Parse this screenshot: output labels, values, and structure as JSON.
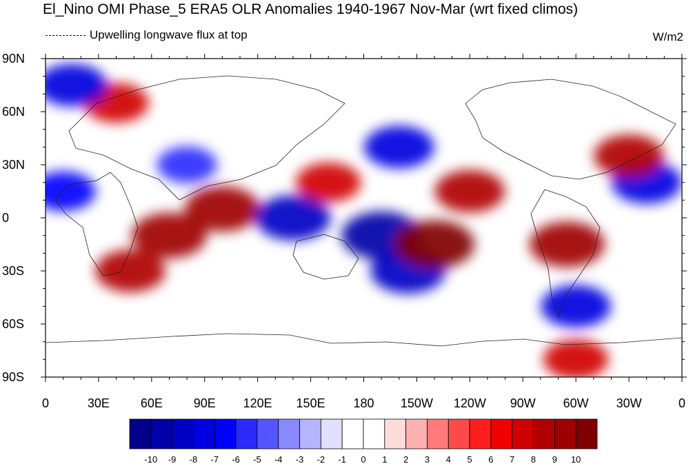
{
  "title": "El_Nino OMI Phase_5 ERA5 OLR Anomalies 1940-1967 Nov-Mar (wrt fixed climos)",
  "subtitle": "Upwelling longwave flux at top",
  "units": "W/m2",
  "map": {
    "lat_labels": [
      "90N",
      "60N",
      "30N",
      "0",
      "30S",
      "60S",
      "90S"
    ],
    "lon_labels": [
      "0",
      "30E",
      "60E",
      "90E",
      "120E",
      "150E",
      "180",
      "150W",
      "120W",
      "90W",
      "60W",
      "30W",
      "0"
    ]
  },
  "colorbar": {
    "labels": [
      "-10",
      "-9",
      "-8",
      "-7",
      "-6",
      "-5",
      "-4",
      "-3",
      "-2",
      "-1",
      "0",
      "1",
      "2",
      "3",
      "4",
      "5",
      "6",
      "7",
      "8",
      "9",
      "10"
    ],
    "colors": [
      "#00008c",
      "#0000a8",
      "#0000c4",
      "#0000e0",
      "#0000ff",
      "#2a2aff",
      "#5555ff",
      "#8888ff",
      "#b4b4ff",
      "#e0e0ff",
      "#ffffff",
      "#ffffff",
      "#ffdcdc",
      "#ffb0b0",
      "#ff7a7a",
      "#ff4a4a",
      "#ff1e1e",
      "#f00000",
      "#d00000",
      "#b00000",
      "#a00000",
      "#800000"
    ]
  },
  "chart_data": {
    "type": "heatmap",
    "variable": "OLR Anomalies",
    "units": "W/m2",
    "levels": [
      -10,
      -9,
      -8,
      -7,
      -6,
      -5,
      -4,
      -3,
      -2,
      -1,
      0,
      1,
      2,
      3,
      4,
      5,
      6,
      7,
      8,
      9,
      10
    ],
    "lon_range": [
      0,
      360
    ],
    "lat_range": [
      -90,
      90
    ],
    "anomaly_regions": [
      {
        "lon": 70,
        "lat": -10,
        "value": 9
      },
      {
        "lon": 48,
        "lat": -30,
        "value": 8
      },
      {
        "lon": 100,
        "lat": 5,
        "value": 9
      },
      {
        "lon": 140,
        "lat": 0,
        "value": -9
      },
      {
        "lon": 190,
        "lat": -10,
        "value": -10
      },
      {
        "lon": 205,
        "lat": -30,
        "value": -9
      },
      {
        "lon": 220,
        "lat": -15,
        "value": 10
      },
      {
        "lon": 295,
        "lat": -15,
        "value": 9
      },
      {
        "lon": 340,
        "lat": 20,
        "value": -8
      },
      {
        "lon": 240,
        "lat": 15,
        "value": 8
      },
      {
        "lon": 200,
        "lat": 40,
        "value": -8
      },
      {
        "lon": 40,
        "lat": 65,
        "value": 7
      },
      {
        "lon": 330,
        "lat": 35,
        "value": 8
      },
      {
        "lon": 300,
        "lat": -50,
        "value": -8
      },
      {
        "lon": 300,
        "lat": -80,
        "value": 7
      },
      {
        "lon": 15,
        "lat": 75,
        "value": -8
      },
      {
        "lon": 10,
        "lat": 15,
        "value": -7
      },
      {
        "lon": 160,
        "lat": 20,
        "value": 7
      },
      {
        "lon": 80,
        "lat": 30,
        "value": -6
      }
    ]
  }
}
